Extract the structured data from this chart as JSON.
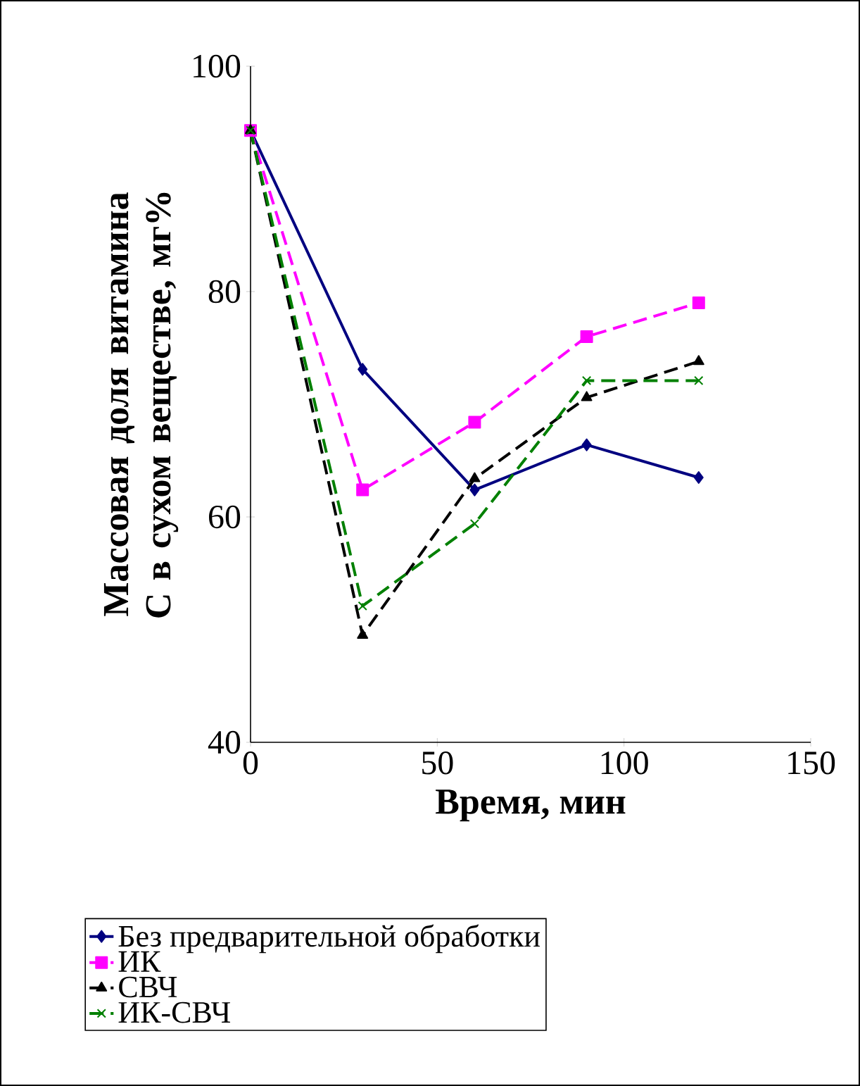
{
  "chart_data": {
    "type": "line",
    "xlabel": "Время, мин",
    "ylabel": "Массовая доля витамина С в сухом веществе, мг%",
    "x": [
      0,
      30,
      60,
      90,
      120
    ],
    "series": [
      {
        "name": "Без предварительной обработки",
        "color": "#000080",
        "marker": "diamond",
        "line_style": "solid",
        "values": [
          94.3,
          73.1,
          62.4,
          66.4,
          63.5
        ]
      },
      {
        "name": "ИК",
        "color": "#ff00ff",
        "marker": "square",
        "line_style": "dashed",
        "values": [
          94.3,
          62.4,
          68.4,
          76.0,
          79.0
        ]
      },
      {
        "name": "СВЧ",
        "color": "#000000",
        "marker": "triangle",
        "line_style": "dashed",
        "values": [
          94.3,
          49.5,
          63.4,
          70.6,
          73.8
        ]
      },
      {
        "name": "ИК-СВЧ",
        "color": "#008000",
        "marker": "cross",
        "line_style": "dashed",
        "values": [
          94.3,
          52.1,
          59.4,
          72.1,
          72.1
        ]
      }
    ],
    "xlim": [
      0,
      150
    ],
    "ylim": [
      40,
      100
    ],
    "xticks": [
      0,
      50,
      100,
      150
    ],
    "yticks": [
      40,
      60,
      80,
      100
    ],
    "grid": false,
    "legend": "bottom"
  }
}
